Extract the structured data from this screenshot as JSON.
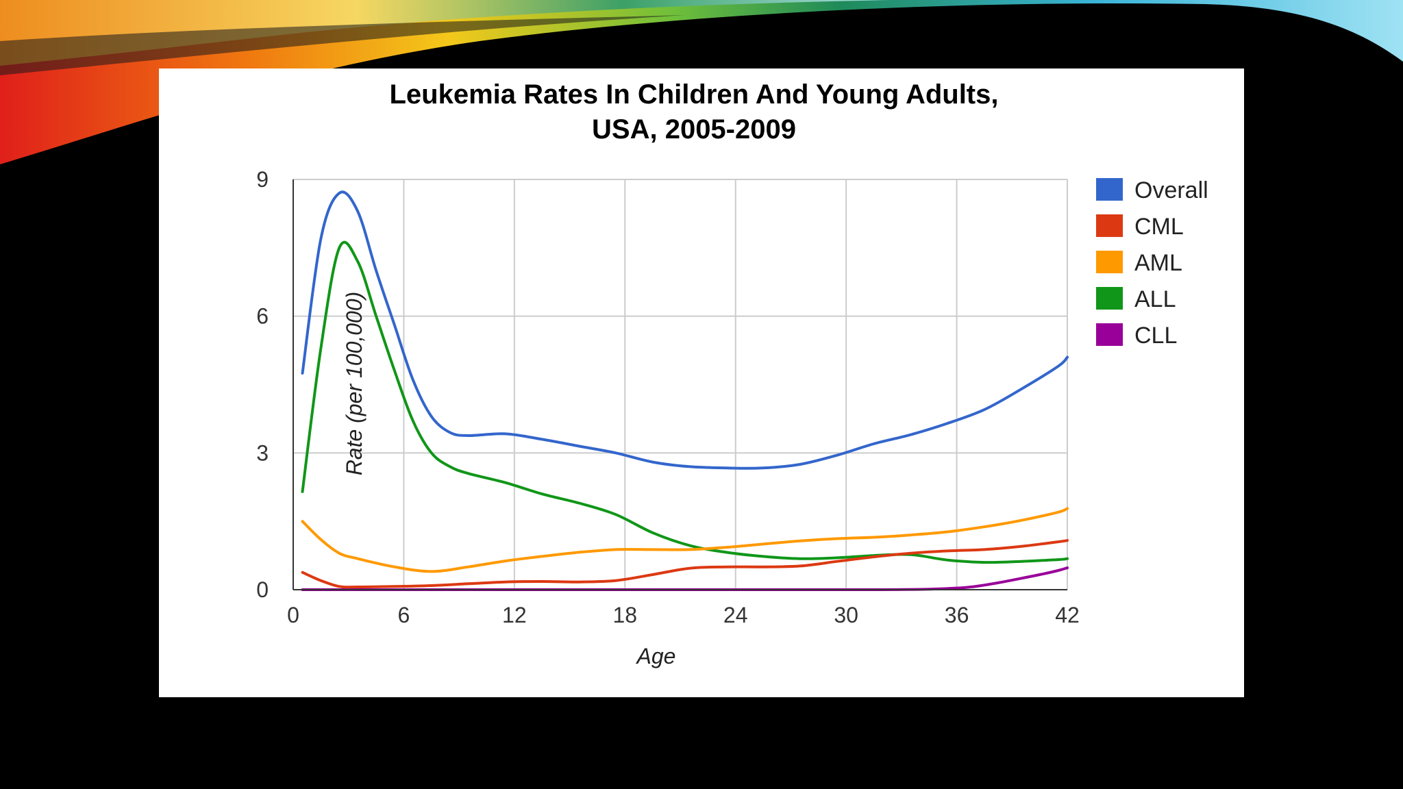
{
  "slide": {
    "background": "#000000",
    "panel_background": "#ffffff"
  },
  "chart_data": {
    "type": "line",
    "title": "Leukemia Rates In Children And Young Adults,",
    "subtitle": "USA, 2005-2009",
    "xlabel": "Age",
    "ylabel": "Rate (per 100,000)",
    "xlim": [
      0,
      42
    ],
    "ylim": [
      0,
      9
    ],
    "xticks": [
      "0",
      "6",
      "12",
      "18",
      "24",
      "30",
      "36",
      "42"
    ],
    "yticks": [
      "0",
      "3",
      "6",
      "9"
    ],
    "grid": true,
    "legend_position": "right",
    "series": [
      {
        "name": "Overall",
        "color": "#3366cc",
        "x": [
          0.5,
          1.5,
          2.5,
          3.5,
          4.5,
          5.5,
          6.5,
          7.5,
          8.5,
          9.5,
          11.5,
          13.5,
          15.5,
          17.5,
          19.5,
          21.5,
          23.5,
          25.5,
          27.5,
          29.5,
          31.5,
          33.5,
          35.5,
          37.5,
          39.5,
          41.5,
          42
        ],
        "values": [
          4.75,
          7.7,
          8.7,
          8.3,
          7.0,
          5.8,
          4.6,
          3.8,
          3.45,
          3.38,
          3.42,
          3.3,
          3.15,
          3.0,
          2.8,
          2.7,
          2.67,
          2.67,
          2.75,
          2.95,
          3.2,
          3.4,
          3.65,
          3.95,
          4.4,
          4.9,
          5.1
        ]
      },
      {
        "name": "CML",
        "color": "#dc3912",
        "x": [
          0.5,
          1.5,
          2.5,
          3.5,
          5.5,
          7.5,
          9.5,
          11.5,
          13.5,
          15.5,
          17.5,
          19.5,
          21.5,
          23.5,
          25.5,
          27.5,
          29.5,
          31.5,
          33.5,
          35.5,
          37.5,
          39.5,
          41.5,
          42
        ],
        "values": [
          0.38,
          0.2,
          0.07,
          0.06,
          0.07,
          0.09,
          0.13,
          0.17,
          0.18,
          0.17,
          0.2,
          0.33,
          0.47,
          0.5,
          0.5,
          0.52,
          0.62,
          0.72,
          0.8,
          0.85,
          0.88,
          0.95,
          1.05,
          1.08
        ]
      },
      {
        "name": "AML",
        "color": "#ff9900",
        "x": [
          0.5,
          1.5,
          2.5,
          3.5,
          5.5,
          7.5,
          9.5,
          11.5,
          13.5,
          15.5,
          17.5,
          19.5,
          21.5,
          23.5,
          25.5,
          27.5,
          29.5,
          31.5,
          33.5,
          35.5,
          37.5,
          39.5,
          41.5,
          42
        ],
        "values": [
          1.5,
          1.1,
          0.8,
          0.68,
          0.5,
          0.4,
          0.5,
          0.63,
          0.73,
          0.82,
          0.88,
          0.88,
          0.88,
          0.93,
          1.0,
          1.07,
          1.12,
          1.15,
          1.2,
          1.27,
          1.38,
          1.52,
          1.7,
          1.78
        ]
      },
      {
        "name": "ALL",
        "color": "#109618",
        "x": [
          0.5,
          1.5,
          2.5,
          3.5,
          4.5,
          5.5,
          6.5,
          7.5,
          8.5,
          9.5,
          11.5,
          13.5,
          15.5,
          17.5,
          19.5,
          21.5,
          23.5,
          25.5,
          27.5,
          29.5,
          31.5,
          33.5,
          35.5,
          37.5,
          39.5,
          41.5,
          42
        ],
        "values": [
          2.15,
          5.3,
          7.5,
          7.2,
          6.0,
          4.8,
          3.7,
          3.0,
          2.7,
          2.55,
          2.35,
          2.1,
          1.9,
          1.65,
          1.25,
          0.97,
          0.82,
          0.73,
          0.68,
          0.7,
          0.75,
          0.77,
          0.65,
          0.6,
          0.62,
          0.66,
          0.68
        ]
      },
      {
        "name": "CLL",
        "color": "#990099",
        "x": [
          0.5,
          3.5,
          9.5,
          15.5,
          21.5,
          27.5,
          31.5,
          34.5,
          36.5,
          37.5,
          38.5,
          39.5,
          40.5,
          41.5,
          42
        ],
        "values": [
          0.0,
          0.0,
          0.0,
          0.0,
          0.0,
          0.0,
          0.0,
          0.01,
          0.05,
          0.1,
          0.17,
          0.25,
          0.33,
          0.42,
          0.48
        ]
      }
    ]
  }
}
